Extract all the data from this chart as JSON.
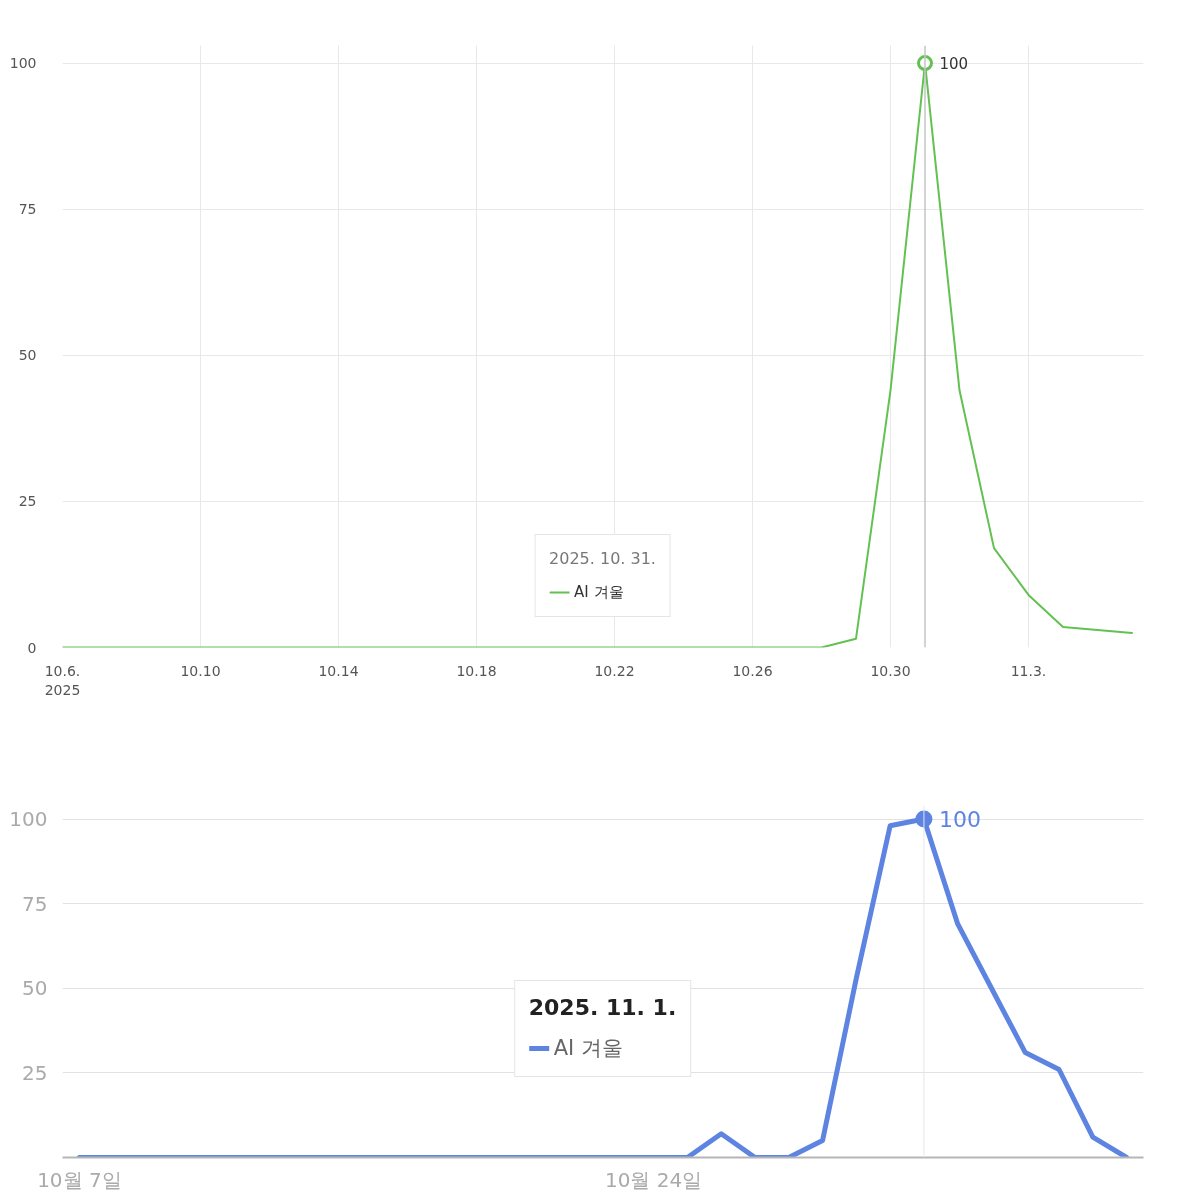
{
  "chart_data": [
    {
      "type": "line",
      "x": [
        "2025-10-06",
        "2025-10-07",
        "2025-10-08",
        "2025-10-09",
        "2025-10-10",
        "2025-10-11",
        "2025-10-12",
        "2025-10-13",
        "2025-10-14",
        "2025-10-15",
        "2025-10-16",
        "2025-10-17",
        "2025-10-18",
        "2025-10-19",
        "2025-10-20",
        "2025-10-21",
        "2025-10-22",
        "2025-10-23",
        "2025-10-24",
        "2025-10-25",
        "2025-10-26",
        "2025-10-27",
        "2025-10-28",
        "2025-10-29",
        "2025-10-30",
        "2025-10-31",
        "2025-11-01",
        "2025-11-02",
        "2025-11-03",
        "2025-11-04",
        "2025-11-05",
        "2025-11-06"
      ],
      "series": [
        {
          "name": "AI 겨울",
          "color": "#63c152",
          "values": [
            0,
            0,
            0,
            0,
            0,
            0,
            0,
            0,
            0,
            0,
            0,
            0,
            0,
            0,
            0,
            0,
            0,
            0,
            0,
            0,
            0,
            0,
            0,
            1.5,
            44,
            100,
            44,
            17,
            9,
            3.5,
            3,
            2.5
          ]
        },
        {
          "type": "scatter",
          "x": [
            "2025-10-31"
          ],
          "color": "#63c152",
          "values": [
            100
          ],
          "value_labels": [
            "100"
          ]
        }
      ],
      "xlim": [
        "2025-10-06",
        "2025-11-06T08:00"
      ],
      "xticks": [
        {
          "value": "2025-10-06",
          "label": "10.6.\n2025"
        },
        {
          "value": "2025-10-10",
          "label": "10.10"
        },
        {
          "value": "2025-10-14",
          "label": "10.14"
        },
        {
          "value": "2025-10-18",
          "label": "10.18"
        },
        {
          "value": "2025-10-22",
          "label": "10.22"
        },
        {
          "value": "2025-10-26",
          "label": "10.26"
        },
        {
          "value": "2025-10-30",
          "label": "10.30"
        },
        {
          "value": "2025-11-03",
          "label": "11.3."
        }
      ],
      "ylim": [
        0,
        103
      ],
      "yticks": [
        0,
        25,
        50,
        75,
        100
      ],
      "grid": true,
      "legend": "bottom",
      "legend_title": "2025. 10. 31.",
      "ref_lines": [
        {
          "axis": "x",
          "value": "2025-10-31",
          "color": "#c4c4c4"
        }
      ]
    },
    {
      "type": "line",
      "x": [
        "2025-10-07",
        "2025-10-08",
        "2025-10-09",
        "2025-10-10",
        "2025-10-11",
        "2025-10-12",
        "2025-10-13",
        "2025-10-14",
        "2025-10-15",
        "2025-10-16",
        "2025-10-17",
        "2025-10-18",
        "2025-10-19",
        "2025-10-20",
        "2025-10-21",
        "2025-10-22",
        "2025-10-23",
        "2025-10-24",
        "2025-10-25",
        "2025-10-26",
        "2025-10-27",
        "2025-10-28",
        "2025-10-29",
        "2025-10-30",
        "2025-10-31",
        "2025-11-01",
        "2025-11-02",
        "2025-11-03",
        "2025-11-04",
        "2025-11-05",
        "2025-11-06",
        "2025-11-07"
      ],
      "series": [
        {
          "name": "AI 겨울",
          "color": "#5e84e2",
          "values": [
            0,
            0,
            0,
            0,
            0,
            0,
            0,
            0,
            0,
            0,
            0,
            0,
            0,
            0,
            0,
            0,
            0,
            0,
            0,
            7,
            0,
            0,
            5,
            53,
            98,
            100,
            69,
            50,
            31,
            26,
            6,
            0
          ]
        },
        {
          "type": "scatter",
          "x": [
            "2025-11-01"
          ],
          "color": "#5e84e2",
          "values": [
            100
          ],
          "value_labels": [
            "100"
          ]
        }
      ],
      "xlim": [
        "2025-10-06T12:00",
        "2025-11-07T12:00"
      ],
      "xticks": [
        {
          "value": "2025-10-07",
          "label": "10월 7일"
        },
        {
          "value": "2025-10-24",
          "label": "10월 24일"
        }
      ],
      "ylim": [
        0,
        104
      ],
      "yticks": [
        25,
        50,
        75,
        100
      ],
      "grid": "y",
      "legend": "bottom",
      "legend_title": "2025. 11. 1.",
      "ref_lines": [
        {
          "axis": "x",
          "value": "2025-11-01",
          "color": "#e6e6e6"
        }
      ]
    }
  ]
}
